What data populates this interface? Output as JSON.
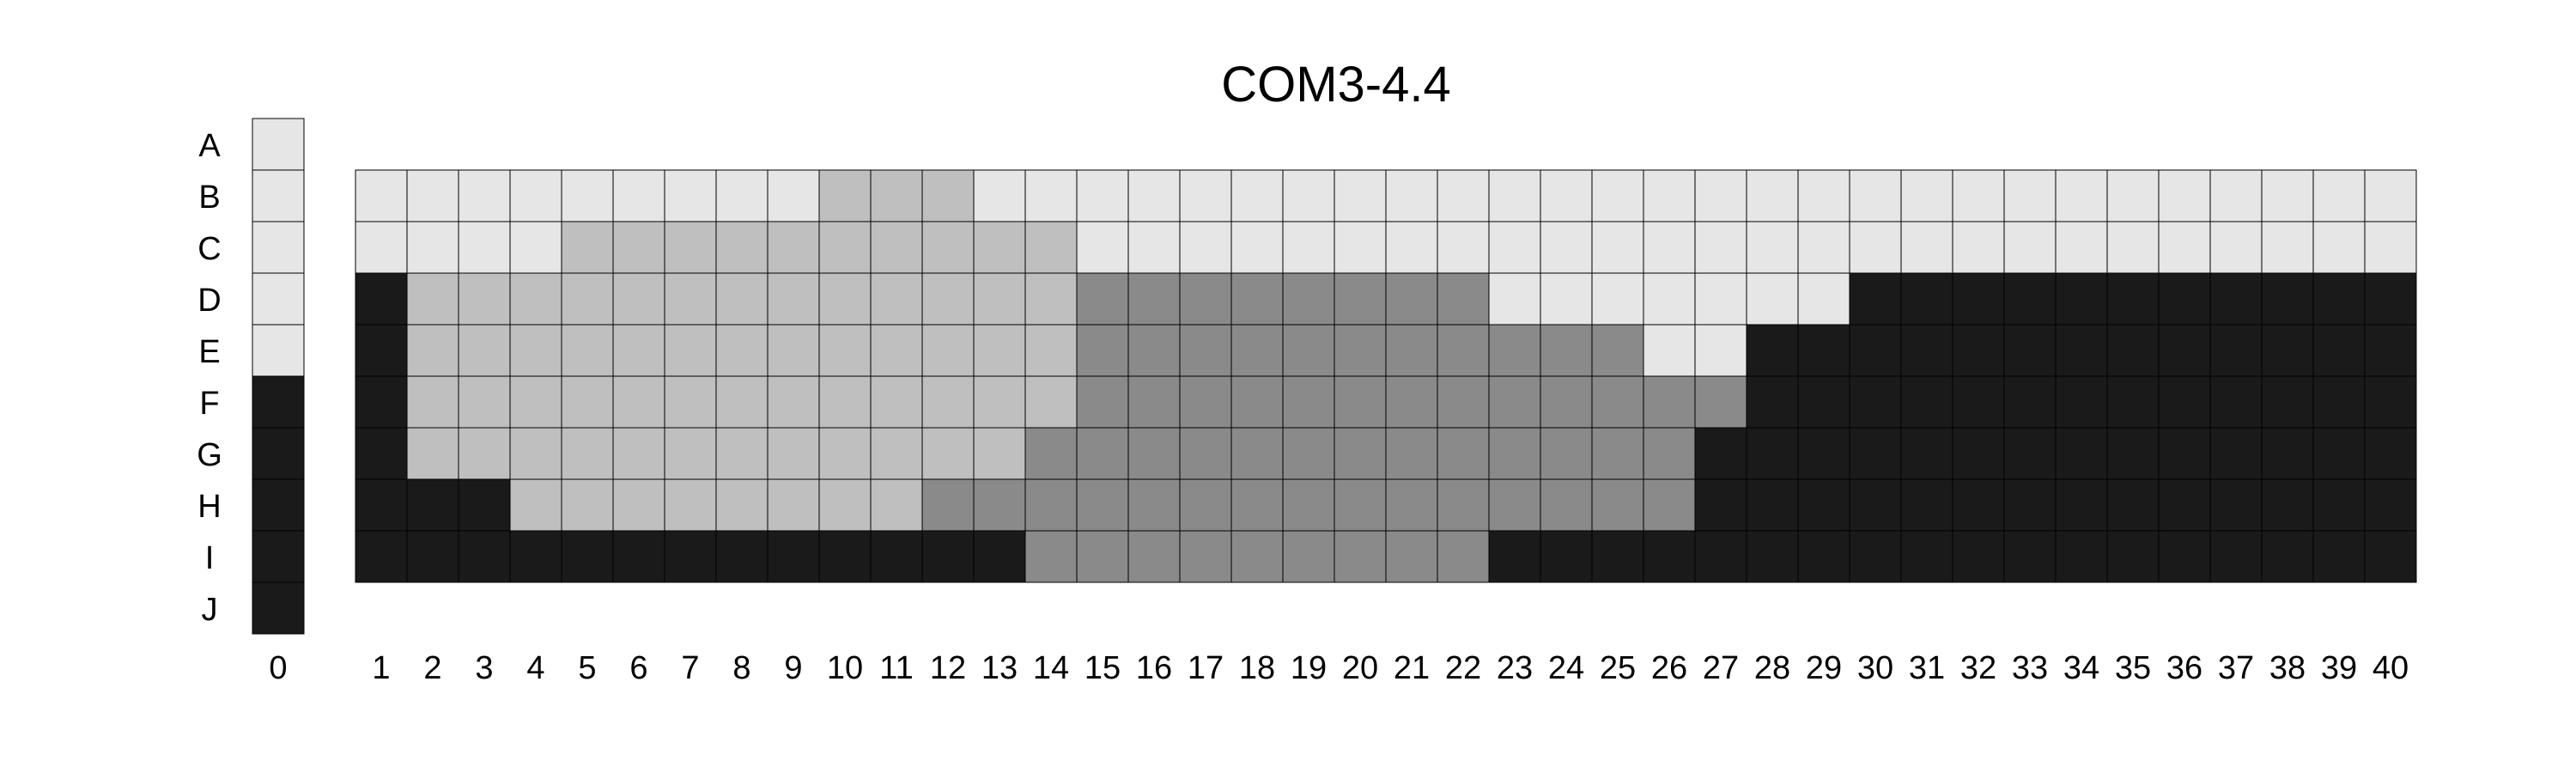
{
  "chart_data": {
    "type": "heatmap",
    "title": "COM3-4.4",
    "xlabel": "",
    "ylabel": "",
    "row_labels": [
      "A",
      "B",
      "C",
      "D",
      "E",
      "F",
      "G",
      "H",
      "I",
      "J"
    ],
    "column_labels": [
      "0",
      "1",
      "2",
      "3",
      "4",
      "5",
      "6",
      "7",
      "8",
      "9",
      "10",
      "11",
      "12",
      "13",
      "14",
      "15",
      "16",
      "17",
      "18",
      "19",
      "20",
      "21",
      "22",
      "23",
      "24",
      "25",
      "26",
      "27",
      "28",
      "29",
      "30",
      "31",
      "32",
      "33",
      "34",
      "35",
      "36",
      "37",
      "38",
      "39",
      "40"
    ],
    "grid": true,
    "palette": {
      "0": "#e6e6e6",
      "1": "#bfbfbf",
      "2": "#8a8a8a",
      "3": "#1a1a1a"
    },
    "reference_column": {
      "label": "0",
      "values": [
        0,
        0,
        0,
        0,
        0,
        3,
        3,
        3,
        3,
        3
      ]
    },
    "rows": [
      {
        "label": "B",
        "values": [
          0,
          0,
          0,
          0,
          0,
          0,
          0,
          0,
          0,
          1,
          1,
          1,
          0,
          0,
          0,
          0,
          0,
          0,
          0,
          0,
          0,
          0,
          0,
          0,
          0,
          0,
          0,
          0,
          0,
          0,
          0,
          0,
          0,
          0,
          0,
          0,
          0,
          0,
          0,
          0
        ]
      },
      {
        "label": "C",
        "values": [
          0,
          0,
          0,
          0,
          1,
          1,
          1,
          1,
          1,
          1,
          1,
          1,
          1,
          1,
          0,
          0,
          0,
          0,
          0,
          0,
          0,
          0,
          0,
          0,
          0,
          0,
          0,
          0,
          0,
          0,
          0,
          0,
          0,
          0,
          0,
          0,
          0,
          0,
          0,
          0
        ]
      },
      {
        "label": "D",
        "values": [
          3,
          1,
          1,
          1,
          1,
          1,
          1,
          1,
          1,
          1,
          1,
          1,
          1,
          1,
          2,
          2,
          2,
          2,
          2,
          2,
          2,
          2,
          0,
          0,
          0,
          0,
          0,
          0,
          0,
          3,
          3,
          3,
          3,
          3,
          3,
          3,
          3,
          3,
          3,
          3
        ]
      },
      {
        "label": "E",
        "values": [
          3,
          1,
          1,
          1,
          1,
          1,
          1,
          1,
          1,
          1,
          1,
          1,
          1,
          1,
          2,
          2,
          2,
          2,
          2,
          2,
          2,
          2,
          2,
          2,
          2,
          0,
          0,
          3,
          3,
          3,
          3,
          3,
          3,
          3,
          3,
          3,
          3,
          3,
          3,
          3
        ]
      },
      {
        "label": "F",
        "values": [
          3,
          1,
          1,
          1,
          1,
          1,
          1,
          1,
          1,
          1,
          1,
          1,
          1,
          1,
          2,
          2,
          2,
          2,
          2,
          2,
          2,
          2,
          2,
          2,
          2,
          2,
          2,
          3,
          3,
          3,
          3,
          3,
          3,
          3,
          3,
          3,
          3,
          3,
          3,
          3
        ]
      },
      {
        "label": "G",
        "values": [
          3,
          1,
          1,
          1,
          1,
          1,
          1,
          1,
          1,
          1,
          1,
          1,
          1,
          2,
          2,
          2,
          2,
          2,
          2,
          2,
          2,
          2,
          2,
          2,
          2,
          2,
          3,
          3,
          3,
          3,
          3,
          3,
          3,
          3,
          3,
          3,
          3,
          3,
          3,
          3
        ]
      },
      {
        "label": "H",
        "values": [
          3,
          3,
          3,
          1,
          1,
          1,
          1,
          1,
          1,
          1,
          1,
          2,
          2,
          2,
          2,
          2,
          2,
          2,
          2,
          2,
          2,
          2,
          2,
          2,
          2,
          2,
          3,
          3,
          3,
          3,
          3,
          3,
          3,
          3,
          3,
          3,
          3,
          3,
          3,
          3
        ]
      },
      {
        "label": "I",
        "values": [
          3,
          3,
          3,
          3,
          3,
          3,
          3,
          3,
          3,
          3,
          3,
          3,
          3,
          2,
          2,
          2,
          2,
          2,
          2,
          2,
          2,
          2,
          3,
          3,
          3,
          3,
          3,
          3,
          3,
          3,
          3,
          3,
          3,
          3,
          3,
          3,
          3,
          3,
          3,
          3
        ]
      }
    ]
  }
}
